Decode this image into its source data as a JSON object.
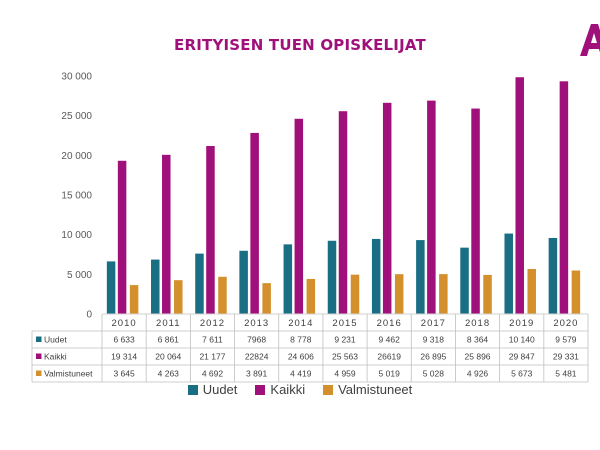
{
  "chart_data": {
    "type": "bar",
    "title": "ERITYISEN TUEN OPISKELIJAT",
    "categories": [
      "2010",
      "2011",
      "2012",
      "2013",
      "2014",
      "2015",
      "2016",
      "2017",
      "2018",
      "2019",
      "2020"
    ],
    "series": [
      {
        "name": "Uudet",
        "color": "#1a6e84",
        "values": [
          6633,
          6861,
          7611,
          7968,
          8778,
          9231,
          9462,
          9318,
          8364,
          10140,
          9579
        ],
        "labels": [
          "6 633",
          "6 861",
          "7 611",
          "7968",
          "8 778",
          "9 231",
          "9 462",
          "9 318",
          "8 364",
          "10 140",
          "9 579"
        ]
      },
      {
        "name": "Kaikki",
        "color": "#a0107a",
        "values": [
          19314,
          20064,
          21177,
          22824,
          24606,
          25563,
          26619,
          26895,
          25896,
          29847,
          29331
        ],
        "labels": [
          "19 314",
          "20 064",
          "21 177",
          "22824",
          "24 606",
          "25 563",
          "26619",
          "26 895",
          "25 896",
          "29 847",
          "29 331"
        ]
      },
      {
        "name": "Valmistuneet",
        "color": "#d4902c",
        "values": [
          3645,
          4263,
          4692,
          3891,
          4419,
          4959,
          5019,
          5028,
          4926,
          5673,
          5481
        ],
        "labels": [
          "3 645",
          "4 263",
          "4 692",
          "3 891",
          "4 419",
          "4 959",
          "5 019",
          "5 028",
          "4 926",
          "5 673",
          "5 481"
        ]
      }
    ],
    "ylim": [
      0,
      30000
    ],
    "yticks": [
      0,
      5000,
      10000,
      15000,
      20000,
      25000,
      30000
    ],
    "ytick_labels": [
      "0",
      "5 000",
      "10 000",
      "15 000",
      "20 000",
      "25 000",
      "30 000"
    ],
    "grid": false,
    "data_table": true,
    "legend_position": "bottom"
  },
  "logo": {
    "text": "A",
    "color": "#a0107a"
  }
}
